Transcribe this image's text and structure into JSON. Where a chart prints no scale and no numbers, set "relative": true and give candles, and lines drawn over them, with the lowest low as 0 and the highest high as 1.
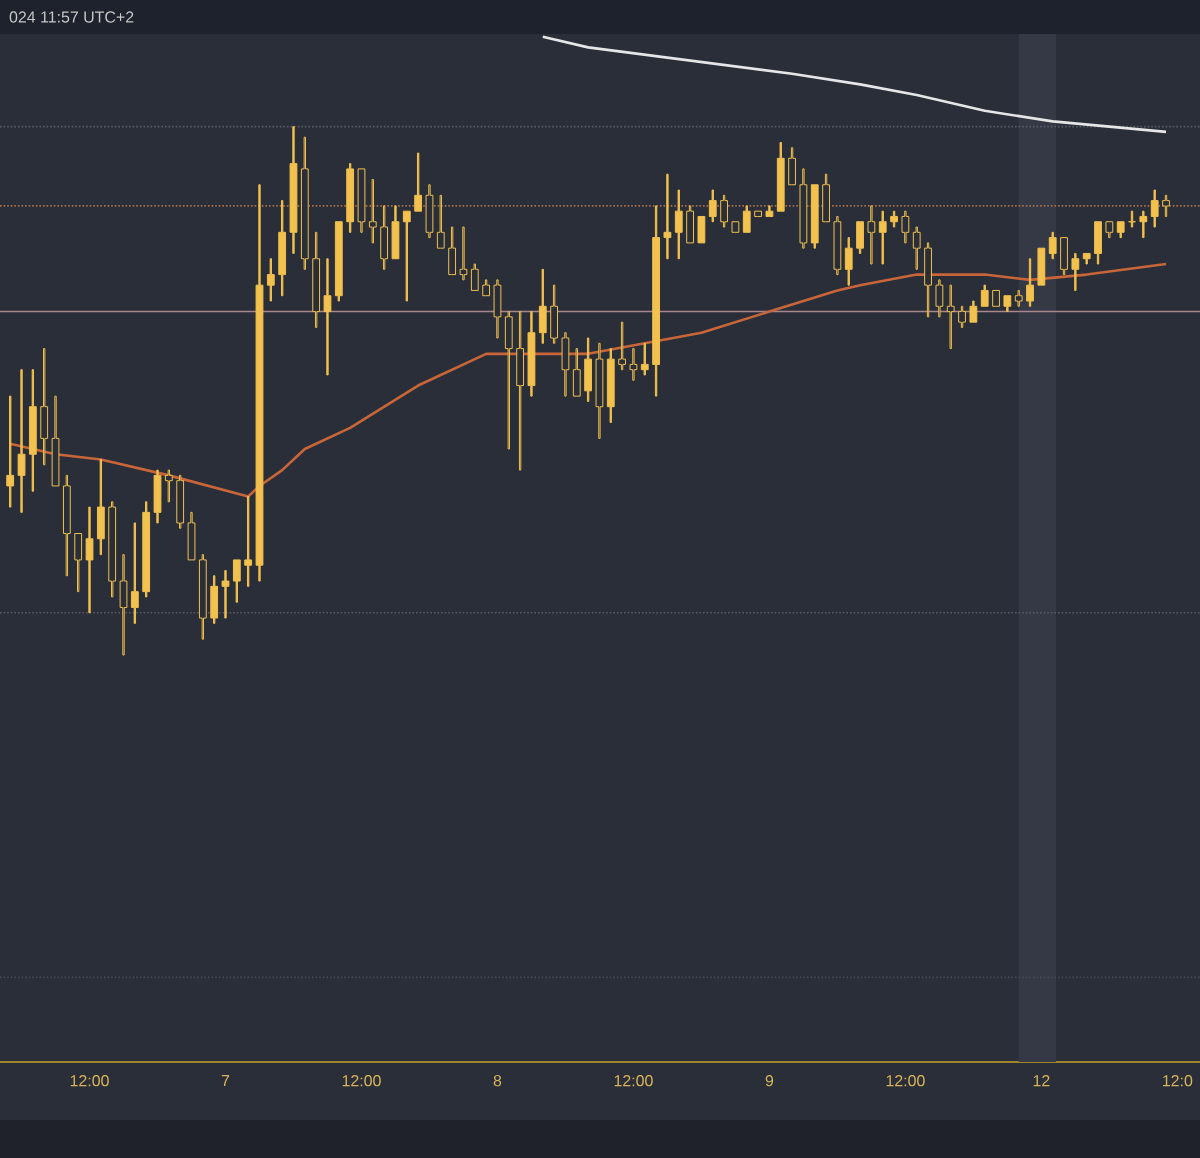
{
  "chart_data": {
    "type": "candlestick",
    "relative": true,
    "color": "#f2c14e",
    "annotations": [
      "024 11:57 UTC+2"
    ],
    "categories": [
      null,
      null,
      null,
      null,
      null,
      null,
      null,
      "12:00",
      null,
      null,
      null,
      null,
      null,
      null,
      null,
      null,
      null,
      null,
      null,
      "7",
      null,
      null,
      null,
      null,
      null,
      null,
      null,
      null,
      null,
      null,
      null,
      "12:00",
      null,
      null,
      null,
      null,
      null,
      null,
      null,
      null,
      null,
      null,
      null,
      "8",
      null,
      null,
      null,
      null,
      null,
      null,
      null,
      null,
      null,
      null,
      null,
      "12:00",
      null,
      null,
      null,
      null,
      null,
      null,
      null,
      null,
      null,
      null,
      null,
      "9",
      null,
      null,
      null,
      null,
      null,
      null,
      null,
      null,
      null,
      null,
      null,
      "12:00",
      null,
      null,
      null,
      null,
      null,
      null,
      null,
      null,
      null,
      null,
      null,
      "12",
      null,
      null,
      null,
      null,
      null,
      null,
      null,
      null,
      null,
      null,
      null,
      "12:0"
    ],
    "ohlc": [
      [
        0.32,
        0.49,
        0.28,
        0.34
      ],
      [
        0.34,
        0.54,
        0.27,
        0.38
      ],
      [
        0.38,
        0.54,
        0.31,
        0.47
      ],
      [
        0.47,
        0.58,
        0.36,
        0.41
      ],
      [
        0.41,
        0.49,
        0.32,
        0.32
      ],
      [
        0.32,
        0.34,
        0.15,
        0.23
      ],
      [
        0.23,
        0.23,
        0.12,
        0.18
      ],
      [
        0.18,
        0.28,
        0.08,
        0.22
      ],
      [
        0.22,
        0.37,
        0.19,
        0.28
      ],
      [
        0.28,
        0.29,
        0.11,
        0.14
      ],
      [
        0.14,
        0.19,
        0.0,
        0.09
      ],
      [
        0.09,
        0.25,
        0.06,
        0.12
      ],
      [
        0.12,
        0.29,
        0.11,
        0.27
      ],
      [
        0.27,
        0.35,
        0.25,
        0.34
      ],
      [
        0.34,
        0.35,
        0.29,
        0.33
      ],
      [
        0.33,
        0.34,
        0.24,
        0.25
      ],
      [
        0.25,
        0.27,
        0.18,
        0.18
      ],
      [
        0.18,
        0.19,
        0.03,
        0.07
      ],
      [
        0.07,
        0.15,
        0.06,
        0.13
      ],
      [
        0.13,
        0.16,
        0.07,
        0.14
      ],
      [
        0.14,
        0.18,
        0.1,
        0.18
      ],
      [
        0.17,
        0.3,
        0.13,
        0.18
      ],
      [
        0.17,
        0.89,
        0.14,
        0.7
      ],
      [
        0.7,
        0.75,
        0.67,
        0.72
      ],
      [
        0.72,
        0.86,
        0.68,
        0.8
      ],
      [
        0.8,
        1.0,
        0.76,
        0.93
      ],
      [
        0.92,
        0.98,
        0.73,
        0.75
      ],
      [
        0.75,
        0.8,
        0.62,
        0.65
      ],
      [
        0.65,
        0.75,
        0.53,
        0.68
      ],
      [
        0.68,
        0.82,
        0.67,
        0.82
      ],
      [
        0.82,
        0.93,
        0.8,
        0.92
      ],
      [
        0.92,
        0.92,
        0.8,
        0.82
      ],
      [
        0.82,
        0.9,
        0.78,
        0.81
      ],
      [
        0.81,
        0.85,
        0.73,
        0.75
      ],
      [
        0.75,
        0.85,
        0.75,
        0.82
      ],
      [
        0.82,
        0.84,
        0.67,
        0.84
      ],
      [
        0.84,
        0.95,
        0.84,
        0.87
      ],
      [
        0.87,
        0.89,
        0.79,
        0.8
      ],
      [
        0.8,
        0.87,
        0.77,
        0.77
      ],
      [
        0.77,
        0.81,
        0.72,
        0.72
      ],
      [
        0.73,
        0.81,
        0.71,
        0.72
      ],
      [
        0.73,
        0.74,
        0.69,
        0.69
      ],
      [
        0.7,
        0.71,
        0.68,
        0.68
      ],
      [
        0.7,
        0.71,
        0.6,
        0.64
      ],
      [
        0.64,
        0.65,
        0.39,
        0.58
      ],
      [
        0.58,
        0.65,
        0.35,
        0.51
      ],
      [
        0.51,
        0.65,
        0.49,
        0.61
      ],
      [
        0.61,
        0.73,
        0.59,
        0.66
      ],
      [
        0.66,
        0.7,
        0.59,
        0.6
      ],
      [
        0.6,
        0.61,
        0.49,
        0.54
      ],
      [
        0.54,
        0.58,
        0.49,
        0.49
      ],
      [
        0.5,
        0.6,
        0.48,
        0.56
      ],
      [
        0.56,
        0.59,
        0.41,
        0.47
      ],
      [
        0.47,
        0.58,
        0.44,
        0.56
      ],
      [
        0.56,
        0.63,
        0.54,
        0.55
      ],
      [
        0.55,
        0.58,
        0.52,
        0.54
      ],
      [
        0.54,
        0.59,
        0.53,
        0.55
      ],
      [
        0.55,
        0.85,
        0.49,
        0.79
      ],
      [
        0.79,
        0.91,
        0.75,
        0.8
      ],
      [
        0.8,
        0.88,
        0.75,
        0.84
      ],
      [
        0.84,
        0.85,
        0.78,
        0.78
      ],
      [
        0.78,
        0.83,
        0.78,
        0.83
      ],
      [
        0.83,
        0.88,
        0.82,
        0.86
      ],
      [
        0.86,
        0.87,
        0.81,
        0.82
      ],
      [
        0.82,
        0.82,
        0.8,
        0.8
      ],
      [
        0.8,
        0.85,
        0.8,
        0.84
      ],
      [
        0.84,
        0.84,
        0.83,
        0.83
      ],
      [
        0.83,
        0.85,
        0.83,
        0.84
      ],
      [
        0.84,
        0.97,
        0.84,
        0.94
      ],
      [
        0.94,
        0.96,
        0.89,
        0.89
      ],
      [
        0.89,
        0.92,
        0.77,
        0.78
      ],
      [
        0.78,
        0.89,
        0.77,
        0.89
      ],
      [
        0.89,
        0.91,
        0.82,
        0.82
      ],
      [
        0.82,
        0.83,
        0.72,
        0.73
      ],
      [
        0.73,
        0.79,
        0.7,
        0.77
      ],
      [
        0.77,
        0.82,
        0.76,
        0.82
      ],
      [
        0.82,
        0.85,
        0.74,
        0.8
      ],
      [
        0.8,
        0.84,
        0.74,
        0.82
      ],
      [
        0.82,
        0.84,
        0.81,
        0.83
      ],
      [
        0.83,
        0.84,
        0.78,
        0.8
      ],
      [
        0.8,
        0.81,
        0.73,
        0.77
      ],
      [
        0.77,
        0.78,
        0.64,
        0.7
      ],
      [
        0.7,
        0.71,
        0.64,
        0.66
      ],
      [
        0.66,
        0.7,
        0.58,
        0.65
      ],
      [
        0.65,
        0.66,
        0.62,
        0.63
      ],
      [
        0.63,
        0.67,
        0.63,
        0.66
      ],
      [
        0.66,
        0.7,
        0.66,
        0.69
      ],
      [
        0.69,
        0.69,
        0.66,
        0.66
      ],
      [
        0.66,
        0.68,
        0.65,
        0.68
      ],
      [
        0.68,
        0.69,
        0.66,
        0.67
      ],
      [
        0.67,
        0.75,
        0.66,
        0.7
      ],
      [
        0.7,
        0.77,
        0.7,
        0.77
      ],
      [
        0.76,
        0.8,
        0.75,
        0.79
      ],
      [
        0.79,
        0.79,
        0.72,
        0.73
      ],
      [
        0.73,
        0.76,
        0.69,
        0.75
      ],
      [
        0.75,
        0.76,
        0.74,
        0.76
      ],
      [
        0.76,
        0.82,
        0.74,
        0.82
      ],
      [
        0.82,
        0.82,
        0.79,
        0.8
      ],
      [
        0.8,
        0.82,
        0.79,
        0.82
      ],
      [
        0.82,
        0.84,
        0.81,
        0.82
      ],
      [
        0.82,
        0.84,
        0.79,
        0.83
      ],
      [
        0.83,
        0.88,
        0.81,
        0.86
      ],
      [
        0.86,
        0.87,
        0.83,
        0.85
      ],
      null
    ],
    "series": [
      {
        "type": "line",
        "color": "#c8663a",
        "values": [
          0.4,
          null,
          null,
          null,
          0.38,
          null,
          null,
          null,
          0.37,
          null,
          null,
          null,
          null,
          null,
          0.34,
          null,
          null,
          null,
          null,
          null,
          null,
          0.3,
          0.32,
          null,
          0.35,
          null,
          0.39,
          null,
          null,
          null,
          0.43,
          null,
          null,
          null,
          null,
          null,
          0.51,
          null,
          null,
          null,
          null,
          null,
          0.57,
          null,
          0.57,
          null,
          null,
          null,
          null,
          null,
          null,
          0.57,
          null,
          null,
          null,
          null,
          null,
          null,
          null,
          null,
          null,
          0.61,
          null,
          null,
          null,
          null,
          null,
          0.65,
          null,
          null,
          null,
          null,
          null,
          0.69,
          null,
          0.7,
          null,
          null,
          null,
          null,
          0.72,
          null,
          null,
          null,
          null,
          null,
          0.72,
          null,
          null,
          null,
          0.71,
          null,
          null,
          null,
          null,
          0.72,
          null,
          null,
          null,
          null,
          null,
          null,
          0.74,
          null
        ]
      },
      {
        "type": "line",
        "color": "#e6e6e6",
        "values": [
          null,
          null,
          null,
          null,
          null,
          null,
          null,
          null,
          null,
          null,
          null,
          null,
          null,
          null,
          null,
          null,
          null,
          null,
          null,
          null,
          null,
          null,
          null,
          null,
          null,
          null,
          null,
          null,
          null,
          null,
          null,
          null,
          null,
          null,
          null,
          null,
          null,
          null,
          null,
          null,
          null,
          null,
          null,
          null,
          null,
          null,
          null,
          1.17,
          null,
          null,
          null,
          1.15,
          null,
          null,
          null,
          null,
          null,
          null,
          null,
          null,
          null,
          null,
          null,
          null,
          null,
          null,
          null,
          null,
          null,
          1.1,
          null,
          null,
          null,
          null,
          null,
          1.08,
          null,
          null,
          null,
          null,
          1.06,
          null,
          null,
          null,
          null,
          null,
          1.03,
          null,
          null,
          null,
          null,
          null,
          1.01,
          null,
          null,
          null,
          null,
          null,
          null,
          null,
          null,
          null,
          0.99,
          null
        ]
      }
    ],
    "ref_lines": [
      {
        "axis": "y",
        "value": 1.0,
        "color": "#575b67",
        "line_style": "dotted"
      },
      {
        "axis": "y",
        "value": 0.85,
        "color": "#a9714a",
        "line_style": "dotted"
      },
      {
        "axis": "y",
        "value": 0.65,
        "color": "#a8878c",
        "line_style": "solid"
      },
      {
        "axis": "y",
        "value": 0.08,
        "color": "#575b67",
        "line_style": "dotted"
      },
      {
        "axis": "y",
        "value": -0.61,
        "color": "#464a56",
        "line_style": "dotted"
      }
    ]
  }
}
